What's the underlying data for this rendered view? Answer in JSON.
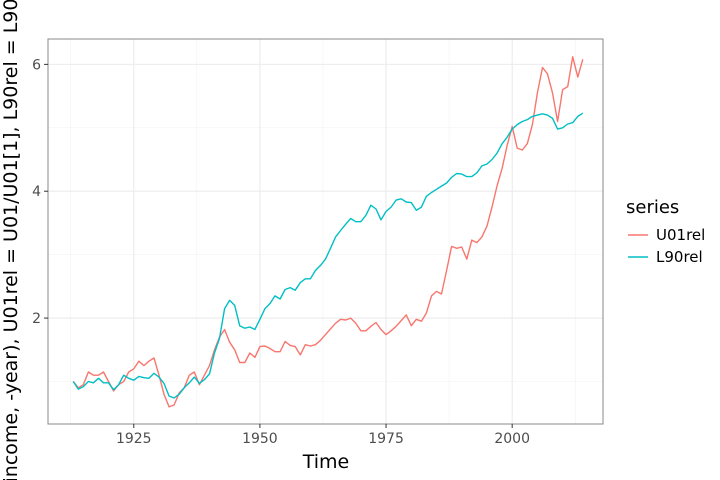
{
  "chart_data": {
    "type": "line",
    "xlabel": "Time",
    "ylabel": "...income, -year), U01rel = U01/U01[1], L90rel = L90/L...",
    "xlim": [
      1908,
      2018
    ],
    "ylim": [
      0.33,
      6.4
    ],
    "xticks": [
      1925,
      1950,
      1975,
      2000
    ],
    "xtick_labels": [
      "1925",
      "1950",
      "1975",
      "2000"
    ],
    "yticks": [
      2,
      4,
      6
    ],
    "ytick_labels": [
      "2",
      "4",
      "6"
    ],
    "grid": true,
    "legend_title": "series",
    "legend_position": "right",
    "x": [
      1913,
      1914,
      1915,
      1916,
      1917,
      1918,
      1919,
      1920,
      1921,
      1922,
      1923,
      1924,
      1925,
      1926,
      1927,
      1928,
      1929,
      1930,
      1931,
      1932,
      1933,
      1934,
      1935,
      1936,
      1937,
      1938,
      1939,
      1940,
      1941,
      1942,
      1943,
      1944,
      1945,
      1946,
      1947,
      1948,
      1949,
      1950,
      1951,
      1952,
      1953,
      1954,
      1955,
      1956,
      1957,
      1958,
      1959,
      1960,
      1961,
      1962,
      1963,
      1964,
      1965,
      1966,
      1967,
      1968,
      1969,
      1970,
      1971,
      1972,
      1973,
      1974,
      1975,
      1976,
      1977,
      1978,
      1979,
      1980,
      1981,
      1982,
      1983,
      1984,
      1985,
      1986,
      1987,
      1988,
      1989,
      1990,
      1991,
      1992,
      1993,
      1994,
      1995,
      1996,
      1997,
      1998,
      1999,
      2000,
      2001,
      2002,
      2003,
      2004,
      2005,
      2006,
      2007,
      2008,
      2009,
      2010,
      2011,
      2012,
      2013,
      2014
    ],
    "series": [
      {
        "name": "U01rel",
        "color": "#F8766D",
        "values": [
          1.0,
          0.9,
          0.95,
          1.15,
          1.1,
          1.1,
          1.15,
          1.0,
          0.85,
          0.95,
          1.0,
          1.15,
          1.2,
          1.32,
          1.25,
          1.32,
          1.37,
          1.1,
          0.8,
          0.6,
          0.63,
          0.82,
          0.9,
          1.1,
          1.15,
          0.95,
          1.1,
          1.25,
          1.5,
          1.7,
          1.82,
          1.62,
          1.5,
          1.3,
          1.3,
          1.45,
          1.38,
          1.55,
          1.56,
          1.52,
          1.47,
          1.47,
          1.63,
          1.57,
          1.55,
          1.42,
          1.58,
          1.56,
          1.58,
          1.65,
          1.74,
          1.83,
          1.92,
          1.98,
          1.97,
          2.0,
          1.92,
          1.8,
          1.8,
          1.87,
          1.93,
          1.82,
          1.74,
          1.8,
          1.87,
          1.96,
          2.05,
          1.88,
          1.98,
          1.95,
          2.08,
          2.35,
          2.42,
          2.38,
          2.75,
          3.13,
          3.1,
          3.12,
          2.93,
          3.23,
          3.19,
          3.28,
          3.45,
          3.75,
          4.08,
          4.36,
          4.72,
          5.02,
          4.68,
          4.65,
          4.75,
          5.05,
          5.55,
          5.95,
          5.85,
          5.55,
          5.1,
          5.6,
          5.65,
          6.12,
          5.8,
          6.08
        ]
      },
      {
        "name": "L90rel",
        "color": "#00BFC4",
        "values": [
          1.0,
          0.88,
          0.92,
          1.0,
          0.98,
          1.05,
          0.98,
          0.98,
          0.87,
          0.95,
          1.1,
          1.05,
          1.02,
          1.08,
          1.06,
          1.05,
          1.13,
          1.07,
          0.97,
          0.77,
          0.74,
          0.8,
          0.9,
          0.98,
          1.07,
          0.97,
          1.03,
          1.12,
          1.45,
          1.68,
          2.15,
          2.28,
          2.2,
          1.88,
          1.84,
          1.86,
          1.82,
          1.98,
          2.15,
          2.23,
          2.35,
          2.3,
          2.45,
          2.48,
          2.44,
          2.56,
          2.62,
          2.62,
          2.75,
          2.83,
          2.93,
          3.1,
          3.28,
          3.38,
          3.48,
          3.57,
          3.52,
          3.52,
          3.62,
          3.78,
          3.72,
          3.55,
          3.68,
          3.75,
          3.86,
          3.88,
          3.83,
          3.82,
          3.7,
          3.75,
          3.92,
          3.98,
          4.03,
          4.08,
          4.13,
          4.22,
          4.28,
          4.27,
          4.23,
          4.23,
          4.29,
          4.4,
          4.43,
          4.5,
          4.6,
          4.75,
          4.85,
          4.98,
          5.05,
          5.1,
          5.13,
          5.18,
          5.2,
          5.22,
          5.2,
          5.15,
          4.98,
          5.0,
          5.06,
          5.08,
          5.18,
          5.23
        ]
      }
    ]
  }
}
